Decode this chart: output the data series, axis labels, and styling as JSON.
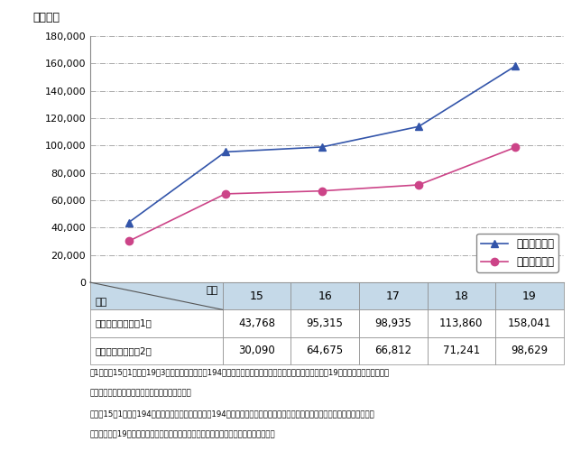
{
  "years": [
    15,
    16,
    17,
    18,
    19
  ],
  "series1_values": [
    43768,
    95315,
    98935,
    113860,
    158041
  ],
  "series2_values": [
    30090,
    64675,
    66812,
    71241,
    98629
  ],
  "series1_label": "年間受理件数",
  "series2_label": "年間提供件数",
  "series1_color": "#3355aa",
  "series2_color": "#cc4488",
  "ylim": [
    0,
    180000
  ],
  "yticks": [
    0,
    20000,
    40000,
    60000,
    80000,
    100000,
    120000,
    140000,
    160000,
    180000
  ],
  "ylabel": "（件数）",
  "table_header_color": "#c5d9e8",
  "table_row_color": "#ffffff",
  "table_years": [
    "15",
    "16",
    "17",
    "18",
    "19"
  ],
  "table_row1_label": "年間受理件数（注1）",
  "table_row2_label": "年間提供件数（注2）",
  "table_row1_values": [
    "43,768",
    "95,315",
    "98,935",
    "113,860",
    "158,041"
  ],
  "table_row2_values": [
    "30,090",
    "64,675",
    "66,812",
    "71,241",
    "98,629"
  ],
  "diag_label_top": "年次",
  "diag_label_bot": "区分",
  "footnote_lines": [
    "注1：平成15年1月かも19年3月までは金融庁が、194月からは国家公安委員会・警察庁が受理した件数。19年は金融庁受理数と国家",
    "　　公安委員会・警察庁受理件数の合算である。",
    "　２：15年1月から194月までは金融庁が警察庁へ、194月からは国家公安委員会・警察庁が搜査機関等へ提供した件数である。",
    "　　　　　　19年は金融庁提供件数と国家公安委員会・警察庁提供件数の合算である。"
  ],
  "grid_color": "#aaaaaa",
  "grid_linestyle": "-.",
  "background_color": "#ffffff"
}
